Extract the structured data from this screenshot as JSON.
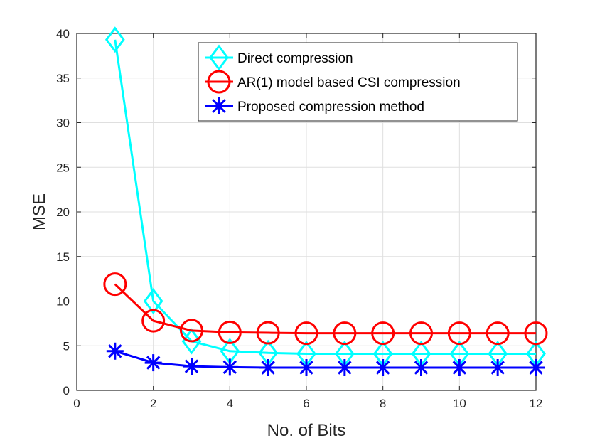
{
  "chart_data": {
    "type": "line",
    "title": "",
    "xlabel": "No. of Bits",
    "ylabel": "MSE",
    "xlim": [
      0,
      12
    ],
    "ylim": [
      0,
      40
    ],
    "xticks": [
      0,
      2,
      4,
      6,
      8,
      10,
      12
    ],
    "yticks": [
      0,
      5,
      10,
      15,
      20,
      25,
      30,
      35,
      40
    ],
    "grid": true,
    "legend_position": "top-right",
    "x": [
      1,
      2,
      3,
      4,
      5,
      6,
      7,
      8,
      9,
      10,
      11,
      12
    ],
    "series": [
      {
        "name": "Direct compression",
        "color": "#00ffff",
        "marker": "diamond",
        "values": [
          39.3,
          10.0,
          5.5,
          4.4,
          4.2,
          4.1,
          4.1,
          4.1,
          4.1,
          4.1,
          4.1,
          4.1
        ]
      },
      {
        "name": "AR(1) model based CSI compression",
        "color": "#ff0000",
        "marker": "circle",
        "values": [
          11.9,
          7.8,
          6.7,
          6.5,
          6.45,
          6.4,
          6.4,
          6.4,
          6.4,
          6.4,
          6.4,
          6.4
        ]
      },
      {
        "name": "Proposed compression method",
        "color": "#0000ff",
        "marker": "asterisk",
        "values": [
          4.4,
          3.1,
          2.7,
          2.6,
          2.55,
          2.55,
          2.55,
          2.55,
          2.55,
          2.55,
          2.55,
          2.55
        ]
      }
    ]
  }
}
